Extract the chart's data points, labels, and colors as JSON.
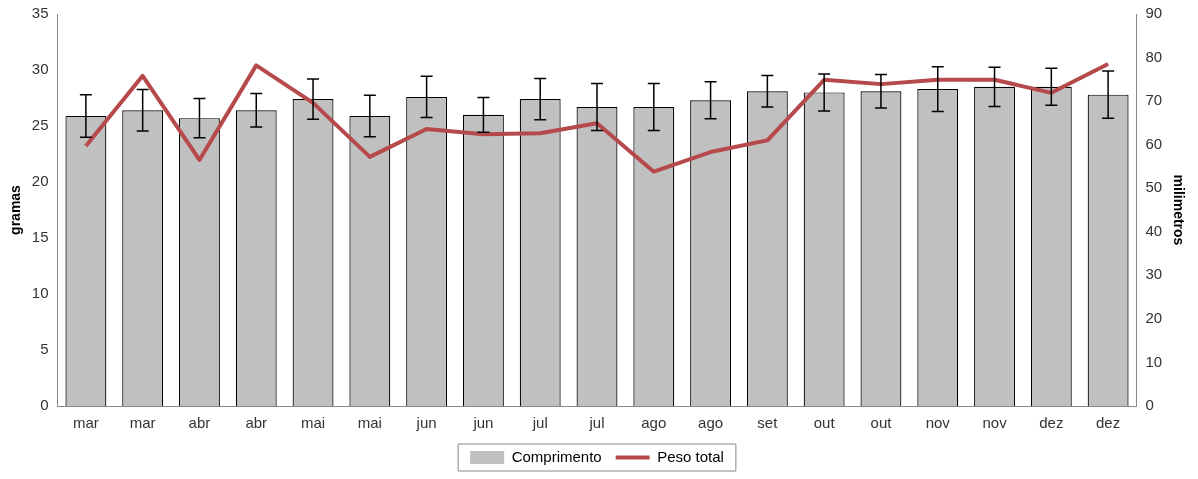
{
  "chart_data": {
    "type": "bar",
    "ylabel": "gramas",
    "y2label": "milimetros",
    "categories": [
      "mar",
      "mar",
      "abr",
      "abr",
      "mai",
      "mai",
      "jun",
      "jun",
      "jul",
      "jul",
      "ago",
      "ago",
      "set",
      "out",
      "out",
      "nov",
      "nov",
      "dez",
      "dez"
    ],
    "series": [
      {
        "name": "Comprimento",
        "color": "#c0c0c0",
        "values": [
          25.9,
          26.4,
          25.7,
          26.4,
          27.4,
          25.9,
          27.6,
          26.0,
          27.4,
          26.7,
          26.7,
          27.3,
          28.1,
          28.0,
          28.1,
          28.3,
          28.5,
          28.5,
          27.8
        ],
        "errors": [
          1.9,
          1.85,
          1.75,
          1.5,
          1.8,
          1.85,
          1.85,
          1.55,
          1.85,
          2.1,
          2.1,
          1.65,
          1.4,
          1.65,
          1.5,
          2.0,
          1.75,
          1.65,
          2.1
        ]
      },
      {
        "name": "Peso total",
        "type": "line",
        "axis": "y2",
        "color": "#b5494b",
        "values": [
          59.7,
          75.8,
          56.5,
          78.2,
          69.6,
          57.2,
          63.6,
          62.4,
          62.6,
          64.9,
          53.8,
          58.3,
          61.0,
          74.9,
          73.9,
          74.9,
          74.9,
          71.9,
          78.5
        ]
      }
    ],
    "ylim": [
      0,
      35
    ],
    "yticks": [
      0,
      5,
      10,
      15,
      20,
      25,
      30,
      35
    ],
    "y2lim": [
      0,
      90
    ],
    "y2ticks": [
      0,
      10,
      20,
      30,
      40,
      50,
      60,
      70,
      80,
      90
    ],
    "legend": "bottom",
    "marker": "none",
    "line_style": "solid",
    "grid": false
  }
}
